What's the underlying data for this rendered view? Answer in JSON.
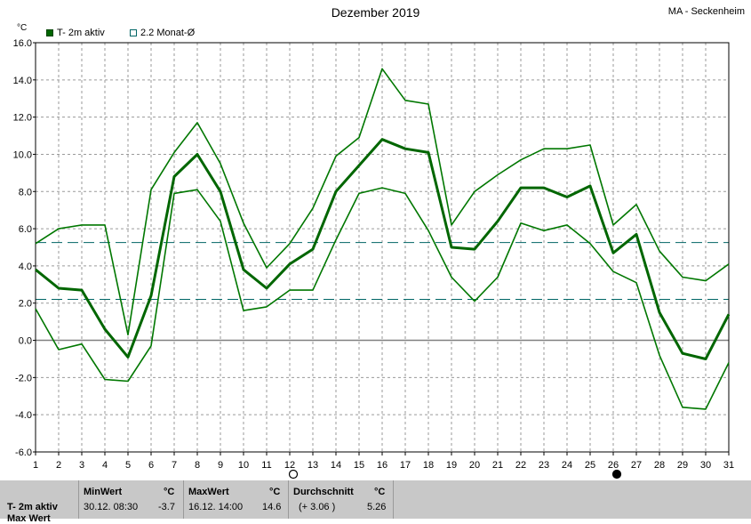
{
  "title": "Dezember 2019",
  "station": "MA - Seckenheim",
  "legend": {
    "series_label": "T- 2m aktiv",
    "mean_label": "2.2 Monat-Ø",
    "colors": {
      "main": "#006600",
      "band": "#007700",
      "mean": "#006666"
    }
  },
  "chart_data": {
    "type": "line",
    "title": "Dezember 2019",
    "ylabel": "°C",
    "ylim": [
      -6,
      16
    ],
    "yticks": [
      "16.0",
      "14.0",
      "12.0",
      "10.0",
      "8.0",
      "6.0",
      "4.0",
      "2.0",
      "0.0",
      "-2.0",
      "-4.0",
      "-6.0"
    ],
    "x": [
      1,
      2,
      3,
      4,
      5,
      6,
      7,
      8,
      9,
      10,
      11,
      12,
      13,
      14,
      15,
      16,
      17,
      18,
      19,
      20,
      21,
      22,
      23,
      24,
      25,
      26,
      27,
      28,
      29,
      30,
      31
    ],
    "series": [
      {
        "name": "T- 2m aktiv",
        "values": [
          3.8,
          2.8,
          2.7,
          0.6,
          -0.9,
          2.4,
          8.8,
          10.0,
          8.0,
          3.8,
          2.8,
          4.1,
          4.9,
          8.0,
          9.4,
          10.8,
          10.3,
          10.1,
          5.0,
          4.9,
          6.4,
          8.2,
          8.2,
          7.7,
          8.3,
          4.7,
          5.7,
          1.5,
          -0.7,
          -1.0,
          1.4
        ]
      },
      {
        "values": [
          5.2,
          6.0,
          6.2,
          6.2,
          0.3,
          8.1,
          10.1,
          11.7,
          9.5,
          6.3,
          3.9,
          5.2,
          7.1,
          9.9,
          10.9,
          14.6,
          12.9,
          12.7,
          6.2,
          8.0,
          8.9,
          9.7,
          10.3,
          10.3,
          10.5,
          6.2,
          7.3,
          4.8,
          3.4,
          3.2,
          4.1
        ]
      },
      {
        "values": [
          1.7,
          -0.5,
          -0.2,
          -2.1,
          -2.2,
          -0.3,
          7.9,
          8.1,
          6.4,
          1.6,
          1.8,
          2.7,
          2.7,
          5.4,
          7.9,
          8.2,
          7.9,
          5.9,
          3.4,
          2.1,
          3.4,
          6.3,
          5.9,
          6.2,
          5.2,
          3.7,
          3.1,
          -0.8,
          -3.6,
          -3.7,
          -1.2
        ]
      }
    ],
    "reference_lines": [
      {
        "name": "2.2 Monat-Ø",
        "value": 2.2
      },
      {
        "value": 5.26
      }
    ],
    "moon_markers": [
      {
        "day": 12,
        "phase": "full"
      },
      {
        "day": 26,
        "phase": "new"
      }
    ],
    "grid": true
  },
  "stats": {
    "row_label": "T- 2m aktiv",
    "row_label_2": "Max Wert",
    "min_header": "MinWert",
    "max_header": "MaxWert",
    "avg_header": "Durchschnitt",
    "unit": "°C",
    "min_time": "30.12.  08:30",
    "min_value": "-3.7",
    "max_time": "16.12.  14:00",
    "max_value": "14.6",
    "avg_delta": "(+ 3.06 )",
    "avg_value": "5.26"
  }
}
